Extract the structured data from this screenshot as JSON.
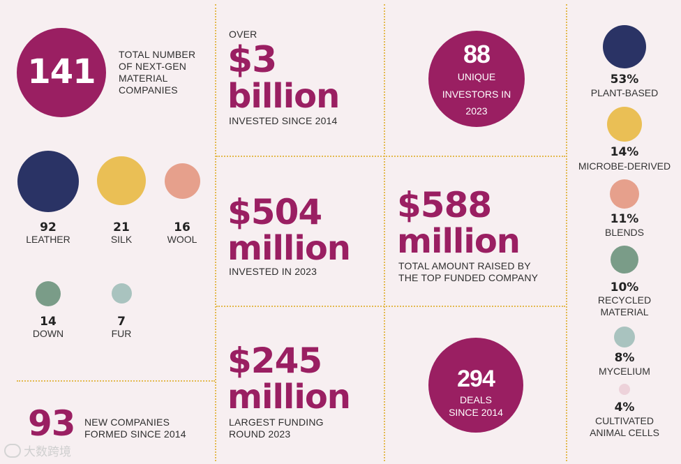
{
  "colors": {
    "plum": "#9a1f62",
    "navy": "#2a3365",
    "gold": "#eabf55",
    "salmon": "#e6a08c",
    "sage": "#7a9c88",
    "mint": "#a9c3bf",
    "blush": "#edd2da",
    "divider": "#e3b94e",
    "background": "#f7eff1"
  },
  "total": {
    "number": "141",
    "label_lines": [
      "TOTAL NUMBER",
      "OF NEXT-GEN",
      "MATERIAL",
      "COMPANIES"
    ]
  },
  "materials": [
    {
      "number": "92",
      "label": "LEATHER",
      "color": "navy"
    },
    {
      "number": "21",
      "label": "SILK",
      "color": "gold"
    },
    {
      "number": "16",
      "label": "WOOL",
      "color": "salmon"
    },
    {
      "number": "14",
      "label": "DOWN",
      "color": "sage"
    },
    {
      "number": "7",
      "label": "FUR",
      "color": "mint"
    }
  ],
  "new_companies": {
    "number": "93",
    "label_lines": [
      "NEW COMPANIES",
      "FORMED SINCE 2014"
    ]
  },
  "invested_total": {
    "prefix": "OVER",
    "amount": "$3",
    "unit": "billion",
    "label": "INVESTED SINCE 2014"
  },
  "invested_2023": {
    "amount": "$504",
    "unit": "million",
    "label": "INVESTED IN 2023"
  },
  "largest_round": {
    "amount": "$245",
    "unit": "million",
    "label_lines": [
      "LARGEST FUNDING",
      "ROUND 2023"
    ]
  },
  "investors": {
    "number": "88",
    "label_lines": [
      "UNIQUE",
      "INVESTORS IN",
      "2023"
    ]
  },
  "top_company": {
    "amount": "$588",
    "unit": "million",
    "label_lines": [
      "TOTAL AMOUNT RAISED BY",
      "THE TOP FUNDED COMPANY"
    ]
  },
  "deals": {
    "number": "294",
    "label_lines": [
      "DEALS",
      "SINCE 2014"
    ]
  },
  "categories": [
    {
      "percent": "53%",
      "label_lines": [
        "PLANT-BASED"
      ],
      "share": 0.53,
      "color": "navy"
    },
    {
      "percent": "14%",
      "label_lines": [
        "MICROBE-DERIVED"
      ],
      "share": 0.14,
      "color": "gold"
    },
    {
      "percent": "11%",
      "label_lines": [
        "BLENDS"
      ],
      "share": 0.11,
      "color": "salmon"
    },
    {
      "percent": "10%",
      "label_lines": [
        "RECYCLED",
        "MATERIAL"
      ],
      "share": 0.1,
      "color": "sage"
    },
    {
      "percent": "8%",
      "label_lines": [
        "MYCELIUM"
      ],
      "share": 0.08,
      "color": "mint"
    },
    {
      "percent": "4%",
      "label_lines": [
        "CULTIVATED",
        "ANIMAL CELLS"
      ],
      "share": 0.04,
      "color": "blush"
    }
  ],
  "watermark": {
    "text": "大数跨境"
  }
}
